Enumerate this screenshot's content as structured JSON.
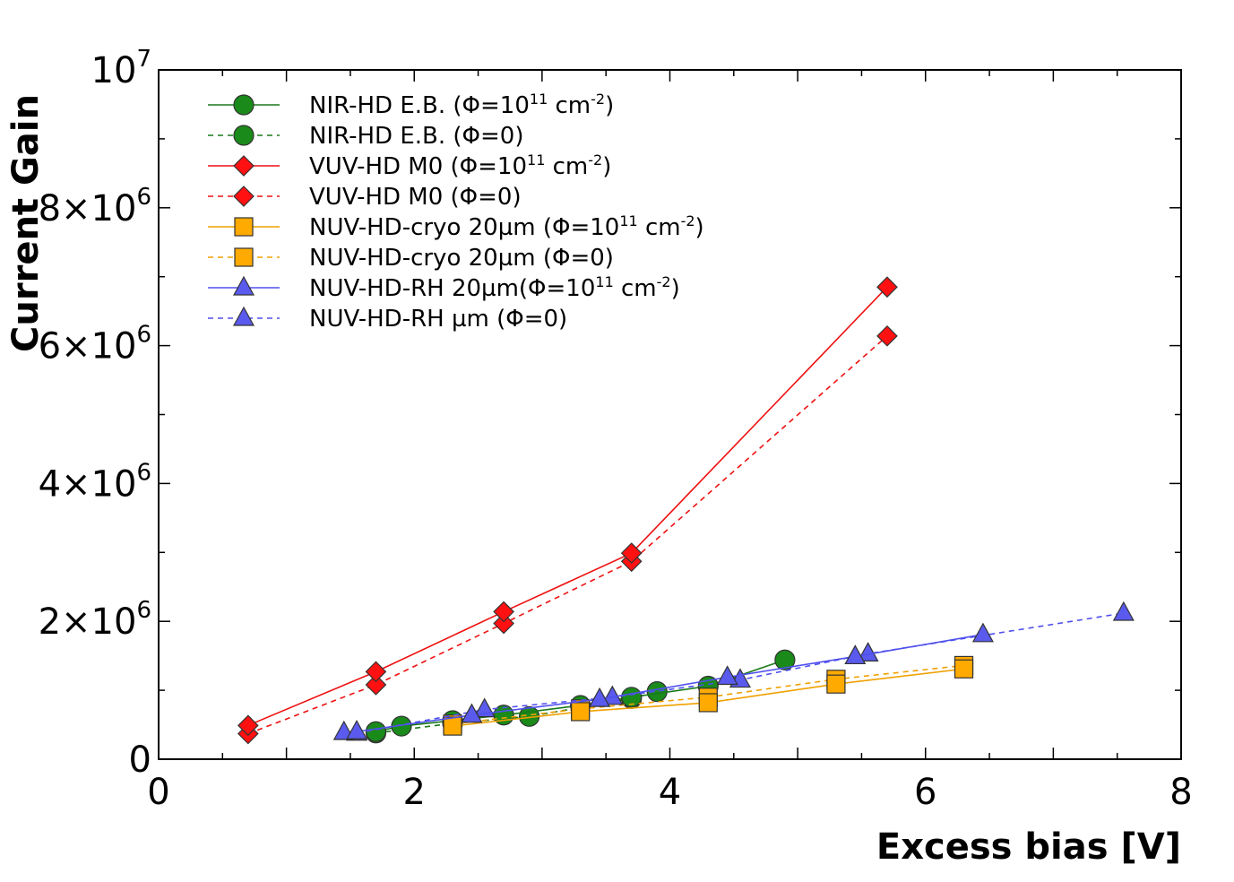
{
  "chart_data": {
    "type": "line",
    "title": "",
    "xlabel": "Excess bias [V]",
    "ylabel": "Current Gain",
    "xlim": [
      0,
      8
    ],
    "ylim": [
      0,
      10000000
    ],
    "grid": false,
    "legend_position": "top-left",
    "x_ticks": [
      {
        "value": 0,
        "label": "0"
      },
      {
        "value": 2,
        "label": "2"
      },
      {
        "value": 4,
        "label": "4"
      },
      {
        "value": 6,
        "label": "6"
      },
      {
        "value": 8,
        "label": "8"
      }
    ],
    "y_ticks": [
      {
        "value": 0,
        "mant": "0",
        "exp": ""
      },
      {
        "value": 2000000,
        "mant": "2×10",
        "exp": "6"
      },
      {
        "value": 4000000,
        "mant": "4×10",
        "exp": "6"
      },
      {
        "value": 6000000,
        "mant": "6×10",
        "exp": "6"
      },
      {
        "value": 8000000,
        "mant": "8×10",
        "exp": "6"
      },
      {
        "value": 10000000,
        "mant": "10",
        "exp": "7"
      }
    ],
    "series": [
      {
        "name": "NIR-HD E.B. (Φ=10^11 cm^-2)",
        "label_parts": [
          [
            "NIR-HD E.B. (Φ=10",
            ""
          ],
          [
            "11",
            "sup"
          ],
          [
            " cm",
            ""
          ],
          [
            "-2",
            "sup"
          ],
          [
            ")",
            ""
          ]
        ],
        "color": "#1a7a1a",
        "fill": "#1a8a1a",
        "marker": "circle",
        "line": "solid",
        "x": [
          1.7,
          1.9,
          2.3,
          2.7,
          3.3,
          3.7,
          4.3,
          4.9
        ],
        "y": [
          400000,
          480000,
          560000,
          640000,
          780000,
          900000,
          1060000,
          1440000
        ]
      },
      {
        "name": "NIR-HD E.B. (Φ=0)",
        "label_parts": [
          [
            "NIR-HD E.B. (Φ=0)",
            ""
          ]
        ],
        "color": "#1a7a1a",
        "fill": "#1a8a1a",
        "marker": "circle",
        "line": "dashed",
        "x": [
          1.7,
          2.3,
          2.9,
          3.7,
          3.9
        ],
        "y": [
          380000,
          520000,
          620000,
          880000,
          980000
        ]
      },
      {
        "name": "VUV-HD M0 (Φ=10^11 cm^-2)",
        "label_parts": [
          [
            "VUV-HD M0 (Φ=10",
            ""
          ],
          [
            "11",
            "sup"
          ],
          [
            " cm",
            ""
          ],
          [
            "-2",
            "sup"
          ],
          [
            ")",
            ""
          ]
        ],
        "color": "#ee1111",
        "fill": "#ff1111",
        "marker": "diamond",
        "line": "solid",
        "x": [
          0.7,
          1.7,
          2.7,
          3.7,
          5.7
        ],
        "y": [
          490000,
          1270000,
          2140000,
          2990000,
          6850000
        ]
      },
      {
        "name": "VUV-HD M0 (Φ=0)",
        "label_parts": [
          [
            "VUV-HD M0 (Φ=0)",
            ""
          ]
        ],
        "color": "#ee1111",
        "fill": "#ff1111",
        "marker": "diamond",
        "line": "dashed",
        "x": [
          0.7,
          1.7,
          2.7,
          3.7,
          5.7
        ],
        "y": [
          370000,
          1080000,
          1970000,
          2870000,
          6140000
        ]
      },
      {
        "name": "NUV-HD-cryo 20µm (Φ=10^11 cm^-2)",
        "label_parts": [
          [
            "NUV-HD-cryo 20µm (Φ=10",
            ""
          ],
          [
            "11",
            "sup"
          ],
          [
            " cm",
            ""
          ],
          [
            "-2",
            "sup"
          ],
          [
            ")",
            ""
          ]
        ],
        "color": "#f0a000",
        "fill": "#ffaa00",
        "marker": "square",
        "line": "solid",
        "x": [
          2.3,
          3.3,
          4.3,
          5.3,
          6.3
        ],
        "y": [
          480000,
          690000,
          820000,
          1090000,
          1310000
        ]
      },
      {
        "name": "NUV-HD-cryo 20µm (Φ=0)",
        "label_parts": [
          [
            "NUV-HD-cryo 20µm (Φ=0)",
            ""
          ]
        ],
        "color": "#f0a000",
        "fill": "#ffaa00",
        "marker": "square",
        "line": "dashed",
        "x": [
          2.3,
          3.3,
          4.3,
          5.3,
          6.3
        ],
        "y": [
          510000,
          730000,
          900000,
          1160000,
          1360000
        ]
      },
      {
        "name": "NUV-HD-RH 20µm(Φ=10^11 cm^-2)",
        "label_parts": [
          [
            "NUV-HD-RH 20µm(Φ=10",
            ""
          ],
          [
            "11",
            "sup"
          ],
          [
            " cm",
            ""
          ],
          [
            "-2",
            "sup"
          ],
          [
            ")",
            ""
          ]
        ],
        "color": "#5050ee",
        "fill": "#5a5aee",
        "marker": "triangle",
        "line": "solid",
        "x": [
          1.45,
          1.55,
          2.45,
          3.45,
          4.45,
          5.45,
          6.45
        ],
        "y": [
          390000,
          400000,
          640000,
          870000,
          1190000,
          1490000,
          1810000
        ]
      },
      {
        "name": "NUV-HD-RH µm (Φ=0)",
        "label_parts": [
          [
            "NUV-HD-RH µm (Φ=0)",
            ""
          ]
        ],
        "color": "#5050ee",
        "fill": "#5a5aee",
        "marker": "triangle",
        "line": "dashed",
        "x": [
          1.55,
          2.55,
          3.55,
          4.55,
          5.55,
          7.55
        ],
        "y": [
          380000,
          720000,
          900000,
          1150000,
          1530000,
          2120000
        ]
      }
    ]
  }
}
